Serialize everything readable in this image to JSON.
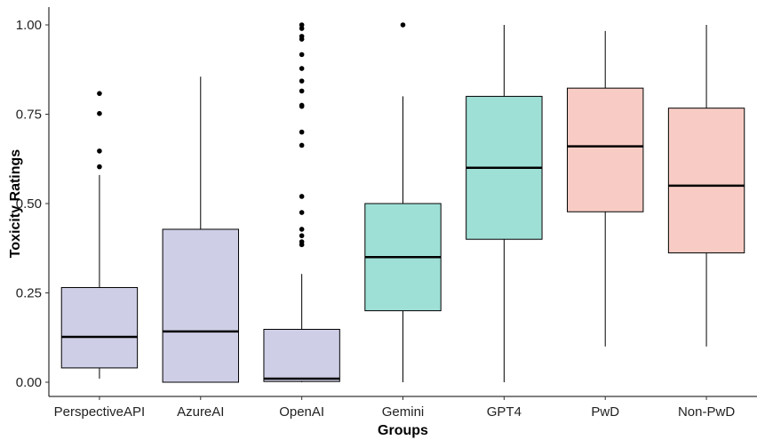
{
  "chart_data": {
    "type": "box",
    "xlabel": "Groups",
    "ylabel": "Toxicity Ratings",
    "ylim": [
      0,
      1
    ],
    "yticks": [
      "0.00",
      "0.25",
      "0.50",
      "0.75",
      "1.00"
    ],
    "ytick_values": [
      0,
      0.25,
      0.5,
      0.75,
      1.0
    ],
    "grid": false,
    "categories": [
      "PerspectiveAPI",
      "AzureAI",
      "OpenAI",
      "Gemini",
      "GPT4",
      "PwD",
      "Non-PwD"
    ],
    "boxes": [
      {
        "name": "PerspectiveAPI",
        "min": 0.01,
        "q1": 0.04,
        "median": 0.127,
        "q3": 0.265,
        "max": 0.58,
        "outliers": [
          0.603,
          0.647,
          0.752,
          0.808
        ],
        "fill": "#cecee6"
      },
      {
        "name": "AzureAI",
        "min": 0.0,
        "q1": 0.0,
        "median": 0.142,
        "q3": 0.428,
        "max": 0.855,
        "outliers": [],
        "fill": "#cecee6"
      },
      {
        "name": "OpenAI",
        "min": 0.0,
        "q1": 0.002,
        "median": 0.01,
        "q3": 0.148,
        "max": 0.303,
        "outliers": [
          0.385,
          0.393,
          0.41,
          0.428,
          0.475,
          0.52,
          0.663,
          0.7,
          0.772,
          0.775,
          0.815,
          0.843,
          0.878,
          0.917,
          0.96,
          0.968,
          0.99,
          1.0
        ],
        "fill": "#cecee6"
      },
      {
        "name": "Gemini",
        "min": 0.0,
        "q1": 0.2,
        "median": 0.35,
        "q3": 0.5,
        "max": 0.8,
        "outliers": [
          1.0
        ],
        "fill": "#9fe0d6"
      },
      {
        "name": "GPT4",
        "min": 0.0,
        "q1": 0.4,
        "median": 0.6,
        "q3": 0.8,
        "max": 1.0,
        "outliers": [],
        "fill": "#9fe0d6"
      },
      {
        "name": "PwD",
        "min": 0.1,
        "q1": 0.477,
        "median": 0.66,
        "q3": 0.823,
        "max": 0.983,
        "outliers": [],
        "fill": "#f8ccc4"
      },
      {
        "name": "Non-PwD",
        "min": 0.1,
        "q1": 0.362,
        "median": 0.55,
        "q3": 0.767,
        "max": 1.0,
        "outliers": [],
        "fill": "#f8ccc4"
      }
    ]
  }
}
